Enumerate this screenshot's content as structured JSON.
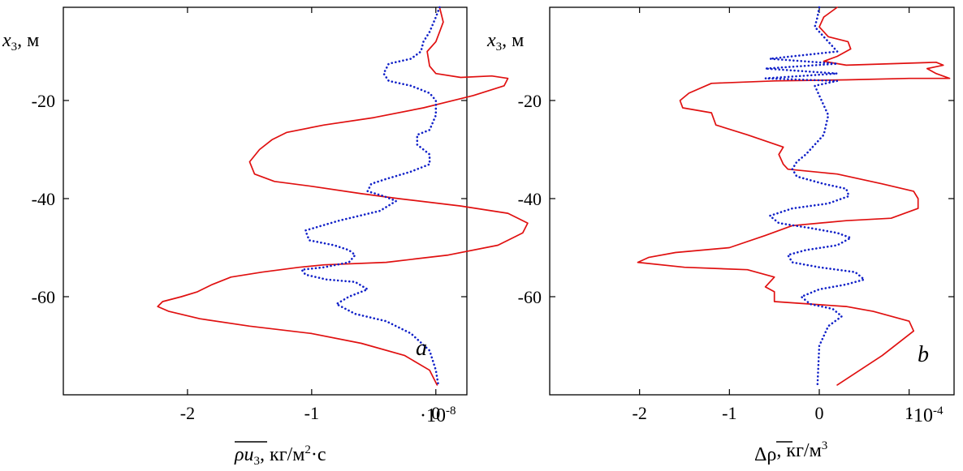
{
  "figure": {
    "colors": {
      "solid": "#e01010",
      "dotted": "#1020c8",
      "axis": "#000000"
    }
  },
  "chart_data": [
    {
      "type": "line",
      "panel": "a",
      "panel_label": "a",
      "ylabel_var": "x",
      "ylabel_sub": "3",
      "ylabel_unit": ", м",
      "xlabel_parts": {
        "var": "ρu",
        "sub": "3",
        "unit": ", кг/м",
        "sup": "2",
        "tail": "·с"
      },
      "x_scale_label": "·10",
      "x_scale_exp": "-8",
      "xlim": [
        -3.0,
        0.25
      ],
      "ylim": [
        -80,
        -1
      ],
      "xticks": [
        -2,
        -1,
        0
      ],
      "xtick_labels": [
        "-2",
        "-1",
        "0"
      ],
      "yticks": [
        -20,
        -40,
        -60
      ],
      "ytick_labels": [
        "-20",
        "-40",
        "-60"
      ],
      "series": [
        {
          "name": "solid",
          "style": "solid",
          "x": [
            0.03,
            0.06,
            0.03,
            0.0,
            -0.07,
            -0.05,
            0.0,
            0.2,
            0.45,
            0.58,
            0.55,
            0.3,
            -0.1,
            -0.5,
            -0.9,
            -1.2,
            -1.32,
            -1.42,
            -1.5,
            -1.46,
            -1.3,
            -1.0,
            -0.6,
            -0.3,
            0.2,
            0.58,
            0.74,
            0.7,
            0.5,
            0.1,
            -0.4,
            -0.9,
            -1.1,
            -1.4,
            -1.65,
            -1.8,
            -1.92,
            -2.05,
            -2.2,
            -2.24,
            -2.15,
            -1.9,
            -1.5,
            -1.0,
            -0.6,
            -0.25,
            -0.05,
            0.01
          ],
          "y": [
            -1,
            -4,
            -6,
            -8,
            -10,
            -13,
            -14.5,
            -15.3,
            -15,
            -15.5,
            -17,
            -19,
            -21.5,
            -23.5,
            -25,
            -26.5,
            -28,
            -30,
            -32.5,
            -35,
            -36.5,
            -37.5,
            -39,
            -40,
            -41.5,
            -43,
            -45,
            -47,
            -49.5,
            -51.5,
            -53,
            -53.5,
            -54,
            -55,
            -56,
            -57.5,
            -59,
            -60,
            -61,
            -62,
            -63,
            -64.5,
            -66,
            -67.5,
            -69.5,
            -72,
            -75,
            -78
          ]
        },
        {
          "name": "dotted",
          "style": "dotted",
          "x": [
            0.03,
            0.0,
            -0.05,
            -0.1,
            -0.12,
            -0.2,
            -0.38,
            -0.42,
            -0.38,
            -0.2,
            -0.05,
            0.0,
            0.0,
            -0.05,
            -0.15,
            -0.15,
            -0.05,
            -0.05,
            -0.2,
            -0.4,
            -0.52,
            -0.55,
            -0.42,
            -0.32,
            -0.45,
            -0.78,
            -1.05,
            -1.02,
            -0.82,
            -0.7,
            -0.65,
            -0.7,
            -0.9,
            -1.08,
            -1.05,
            -0.88,
            -0.65,
            -0.55,
            -0.7,
            -0.8,
            -0.65,
            -0.4,
            -0.2,
            -0.05,
            0.0,
            0.02
          ],
          "y": [
            -1,
            -3,
            -6,
            -8,
            -10,
            -11.5,
            -12.5,
            -14.5,
            -16,
            -17,
            -18.5,
            -20,
            -23,
            -26,
            -27,
            -29,
            -31,
            -33,
            -34.5,
            -36,
            -37,
            -38.5,
            -39.5,
            -40.5,
            -42.5,
            -44.5,
            -46.5,
            -48.5,
            -49.5,
            -50.5,
            -51.5,
            -53,
            -54,
            -54.5,
            -55.5,
            -56.5,
            -57,
            -58.5,
            -60,
            -61.5,
            -63.5,
            -65,
            -67.5,
            -71,
            -75,
            -78
          ]
        }
      ]
    },
    {
      "type": "line",
      "panel": "b",
      "panel_label": "b",
      "ylabel_var": "x",
      "ylabel_sub": "3",
      "ylabel_unit": ", м",
      "xlabel_parts": {
        "var": "Δρ",
        "sub": "",
        "unit": ", кг/м",
        "sup": "3",
        "tail": ""
      },
      "x_scale_label": "·10",
      "x_scale_exp": "-4",
      "xlim": [
        -3.0,
        1.5
      ],
      "ylim": [
        -80,
        -1
      ],
      "xticks": [
        -2,
        -1,
        0,
        1
      ],
      "xtick_labels": [
        "-2",
        "-1",
        "0",
        "1"
      ],
      "yticks": [
        -20,
        -40,
        -60
      ],
      "ytick_labels": [
        "-20",
        "-40",
        "-60"
      ],
      "series": [
        {
          "name": "solid",
          "style": "solid",
          "x": [
            0.2,
            0.05,
            0.0,
            0.1,
            0.32,
            0.35,
            0.2,
            0.05,
            0.3,
            0.8,
            1.3,
            1.38,
            1.2,
            1.3,
            1.45,
            1.0,
            0.3,
            -0.5,
            -1.2,
            -1.45,
            -1.55,
            -1.52,
            -1.2,
            -1.15,
            -0.8,
            -0.4,
            -0.45,
            -0.4,
            -0.35,
            0.2,
            0.7,
            1.05,
            1.1,
            1.1,
            0.8,
            0.3,
            -0.3,
            -0.6,
            -1.0,
            -1.6,
            -1.9,
            -2.02,
            -1.5,
            -0.8,
            -0.5,
            -0.6,
            -0.5,
            -0.5,
            -0.5,
            0.3,
            0.6,
            1.0,
            1.05,
            0.7,
            0.2
          ],
          "y": [
            -1,
            -3,
            -5,
            -7,
            -8,
            -9.5,
            -11,
            -12,
            -12.8,
            -12.5,
            -12.2,
            -12.8,
            -13.5,
            -14.5,
            -15.5,
            -15.5,
            -15.8,
            -16,
            -16.5,
            -18.5,
            -20,
            -21.5,
            -22.5,
            -25,
            -27,
            -29.5,
            -31,
            -33,
            -34,
            -35,
            -37,
            -38.5,
            -40,
            -42,
            -44,
            -44.5,
            -45.5,
            -47.5,
            -50,
            -51,
            -52,
            -53,
            -54,
            -54.5,
            -56,
            -58,
            -59,
            -60,
            -61,
            -62,
            -63,
            -65,
            -67,
            -72,
            -78
          ]
        },
        {
          "name": "dotted",
          "style": "dotted",
          "x": [
            0.0,
            -0.02,
            -0.05,
            0.05,
            0.2,
            -0.55,
            0.2,
            -0.6,
            0.2,
            -0.6,
            0.2,
            -0.05,
            0.0,
            0.1,
            0.05,
            -0.05,
            -0.15,
            -0.25,
            -0.3,
            -0.25,
            0.05,
            0.3,
            0.33,
            0.1,
            -0.3,
            -0.55,
            -0.45,
            -0.1,
            0.2,
            0.35,
            0.2,
            -0.15,
            -0.35,
            -0.3,
            0.0,
            0.4,
            0.5,
            0.3,
            0.0,
            -0.2,
            -0.1,
            0.15,
            0.25,
            0.1,
            0.0,
            -0.02
          ],
          "y": [
            -1,
            -3,
            -5,
            -7,
            -10,
            -11.5,
            -12.5,
            -13.5,
            -14.5,
            -15.5,
            -16,
            -17,
            -19,
            -23,
            -27,
            -29,
            -31,
            -32.5,
            -34,
            -35.5,
            -37,
            -38,
            -39.5,
            -41,
            -42,
            -43.5,
            -45,
            -46,
            -47,
            -48,
            -49.5,
            -50.5,
            -51.5,
            -53,
            -54,
            -55,
            -56.5,
            -57.5,
            -58.5,
            -60,
            -61.5,
            -62.5,
            -64,
            -66,
            -70,
            -78
          ]
        }
      ]
    }
  ]
}
